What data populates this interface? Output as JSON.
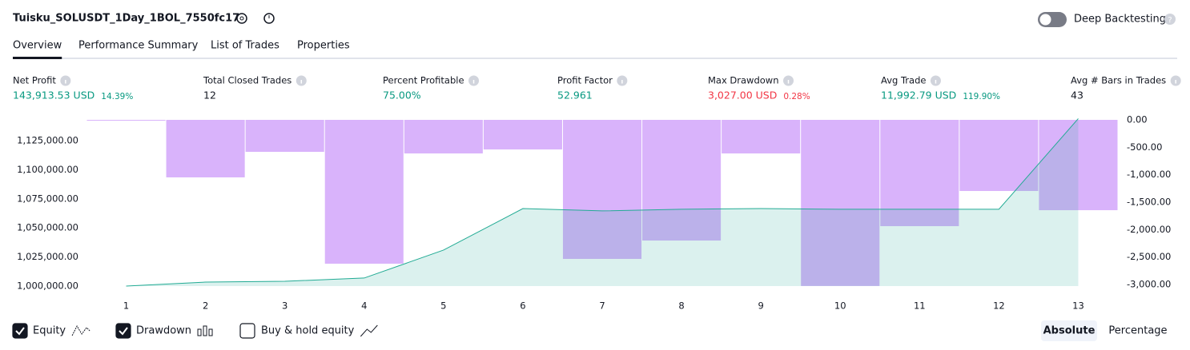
{
  "header": {
    "title": "Tuisku_SOLUSDT_1Day_1BOL_7550fc17",
    "toggle_label": "Deep Backtesting"
  },
  "tabs": [
    "Overview",
    "Performance Summary",
    "List of Trades",
    "Properties"
  ],
  "metrics": [
    {
      "label": "Net Profit",
      "value": "143,913.53 USD",
      "percent": "14.39%",
      "tone": "positive"
    },
    {
      "label": "Total Closed Trades",
      "value": "12",
      "tone": "neutral"
    },
    {
      "label": "Percent Profitable",
      "value": "75.00%",
      "tone": "positive"
    },
    {
      "label": "Profit Factor",
      "value": "52.961",
      "tone": "positive"
    },
    {
      "label": "Max Drawdown",
      "value": "3,027.00 USD",
      "percent": "0.28%",
      "tone": "negative"
    },
    {
      "label": "Avg Trade",
      "value": "11,992.79 USD",
      "percent": "119.90%",
      "tone": "positive"
    },
    {
      "label": "Avg # Bars in Trades",
      "value": "43",
      "tone": "neutral"
    }
  ],
  "chart_data": {
    "type": "equity-drawdown",
    "x": [
      1,
      2,
      3,
      4,
      5,
      6,
      7,
      8,
      9,
      10,
      11,
      12,
      13
    ],
    "xlim": [
      0.5,
      13.5
    ],
    "xticks": [
      1,
      2,
      3,
      4,
      5,
      6,
      7,
      8,
      9,
      10,
      11,
      12,
      13
    ],
    "ylim": [
      998600,
      1142850
    ],
    "yticks": [
      {
        "value": 1000000,
        "label": "1,000,000.00"
      },
      {
        "value": 1025000,
        "label": "1,025,000.00"
      },
      {
        "value": 1050000,
        "label": "1,050,000.00"
      },
      {
        "value": 1075000,
        "label": "1,075,000.00"
      },
      {
        "value": 1100000,
        "label": "1,100,000.00"
      },
      {
        "value": 1125000,
        "label": "1,125,000.00"
      }
    ],
    "y2lim": [
      -3058,
      0
    ],
    "y2ticks": [
      {
        "value": 0,
        "label": "0.00"
      },
      {
        "value": -500,
        "label": "-500.00"
      },
      {
        "value": -1000,
        "label": "-1,000.00"
      },
      {
        "value": -1500,
        "label": "-1,500.00"
      },
      {
        "value": -2000,
        "label": "-2,000.00"
      },
      {
        "value": -2500,
        "label": "-2,500.00"
      },
      {
        "value": -3000,
        "label": "-3,000.00"
      }
    ],
    "series": [
      {
        "name": "Equity",
        "color": "#22ab94",
        "checked": true,
        "values": [
          1000000,
          1003400,
          1004100,
          1006900,
          1030900,
          1066600,
          1064600,
          1066000,
          1066600,
          1066000,
          1066000,
          1066000,
          1143913.53
        ]
      },
      {
        "name": "Drawdown",
        "color": "#d9b3fb",
        "axis": "y2",
        "checked": true,
        "values": [
          -8,
          -1048,
          -583,
          -2621,
          -612,
          -539,
          -2534,
          -2199,
          -612,
          -3027,
          -1937,
          -1296,
          -1646
        ]
      }
    ]
  },
  "extra_legend": {
    "name": "Buy & hold equity",
    "checked": false
  },
  "view_buttons": [
    "Absolute",
    "Percentage"
  ]
}
